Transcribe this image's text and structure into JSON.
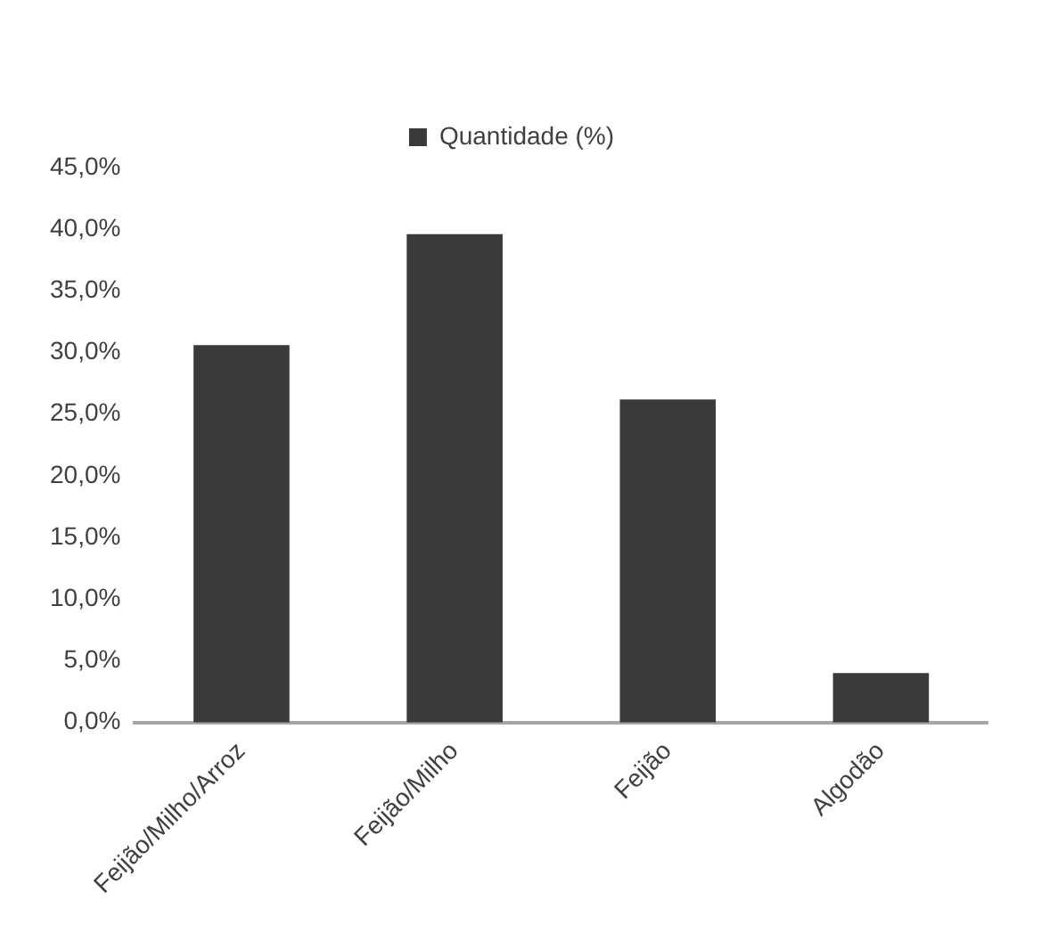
{
  "chart_data": {
    "type": "bar",
    "categories": [
      "Feijão/Milho/Arroz",
      "Feijão/Milho",
      "Feijão",
      "Algodão"
    ],
    "series": [
      {
        "name": "Quantidade (%)",
        "color": "#3a3a3a",
        "values": [
          30.6,
          39.6,
          26.2,
          4.0
        ]
      }
    ],
    "ylim": [
      0,
      45
    ],
    "yticks": [
      {
        "value": 0,
        "label": "0,0%"
      },
      {
        "value": 5,
        "label": "5,0%"
      },
      {
        "value": 10,
        "label": "10,0%"
      },
      {
        "value": 15,
        "label": "15,0%"
      },
      {
        "value": 20,
        "label": "20,0%"
      },
      {
        "value": 25,
        "label": "25,0%"
      },
      {
        "value": 30,
        "label": "30,0%"
      },
      {
        "value": 35,
        "label": "35,0%"
      },
      {
        "value": 40,
        "label": "40,0%"
      },
      {
        "value": 45,
        "label": "45,0%"
      }
    ],
    "grid": false,
    "legend": "top"
  }
}
